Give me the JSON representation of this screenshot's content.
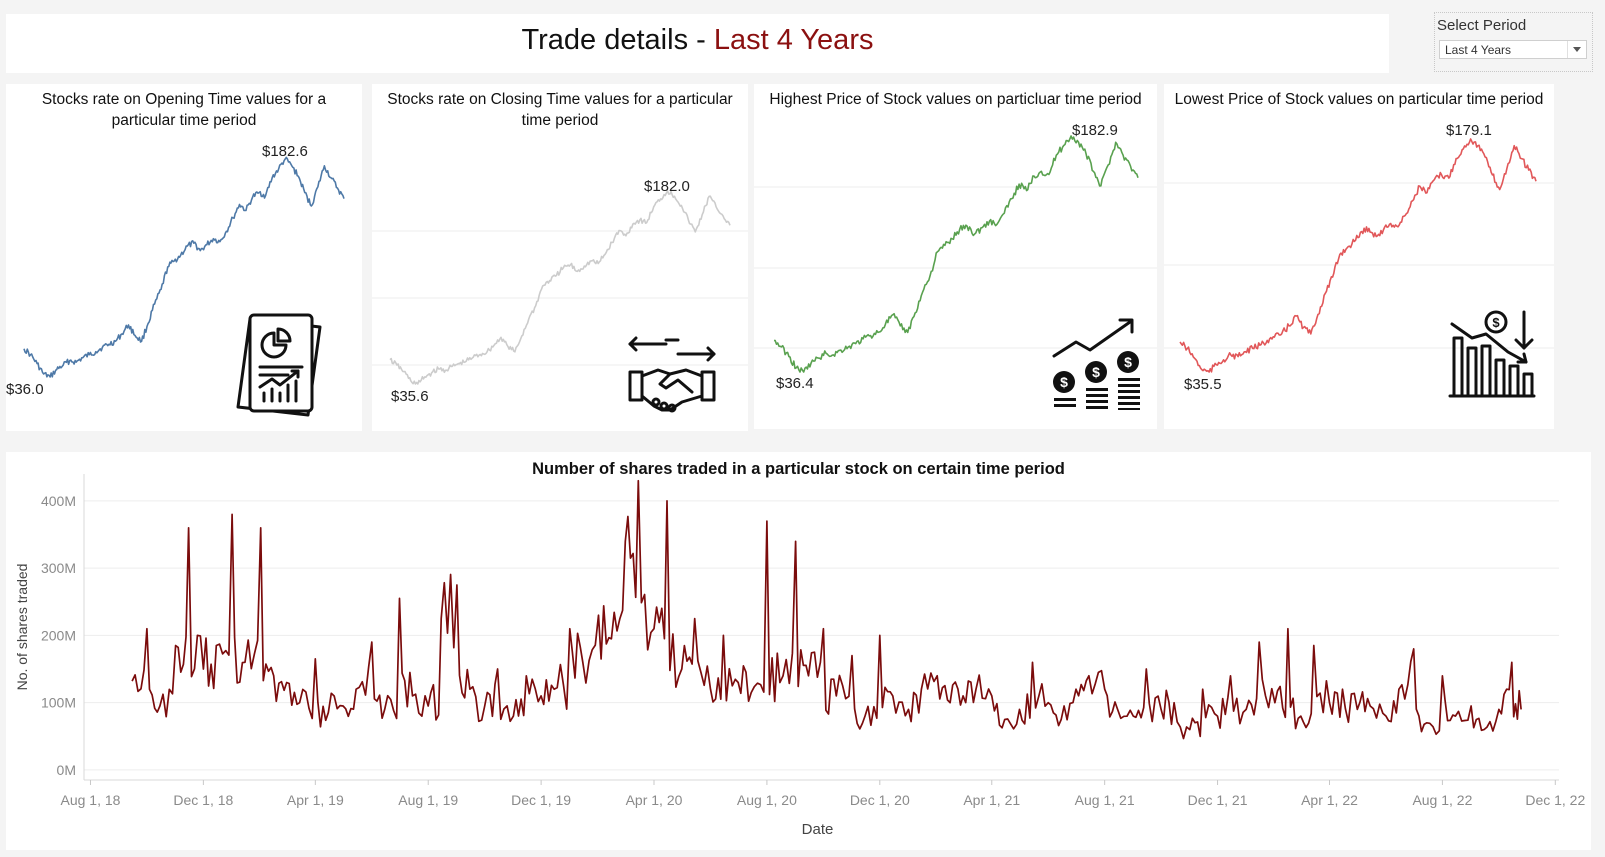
{
  "header": {
    "title_prefix": "Trade details - ",
    "title_accent": "Last 4 Years",
    "accent_color": "#8b1010"
  },
  "period_filter": {
    "label": "Select Period",
    "selected": "Last 4 Years"
  },
  "icons": [
    "report-icon",
    "handshake-icon",
    "growth-coins-icon",
    "decline-icon",
    "chevron-down-icon"
  ],
  "chart_data": [
    {
      "type": "line",
      "title": "Stocks rate on Opening Time values for a particular time period",
      "color": "#4e79a7",
      "x_range": [
        "2018-09-01",
        "2022-10-31"
      ],
      "min_label": "$36.0",
      "max_label": "$182.6",
      "ylim": [
        34,
        185
      ],
      "values": [
        55,
        51,
        45,
        38,
        36,
        41,
        44,
        47,
        46,
        49,
        51,
        53,
        56,
        58,
        60,
        65,
        71,
        64,
        60,
        72,
        85,
        95,
        110,
        114,
        118,
        124,
        126,
        121,
        125,
        129,
        127,
        134,
        143,
        152,
        148,
        157,
        160,
        158,
        170,
        176,
        182.6,
        178,
        171,
        160,
        151,
        164,
        178,
        170,
        163,
        156
      ]
    },
    {
      "type": "line",
      "title": "Stocks rate on Closing Time values for a particular time period",
      "color": "#cccccc",
      "x_range": [
        "2018-09-01",
        "2022-10-31"
      ],
      "min_label": "$35.6",
      "max_label": "$182.0",
      "ylim": [
        34,
        185
      ],
      "values": [
        54,
        50,
        45,
        38,
        35.6,
        41,
        44,
        47,
        46,
        49,
        51,
        53,
        56,
        58,
        60,
        65,
        71,
        64,
        60,
        72,
        85,
        95,
        110,
        114,
        118,
        124,
        126,
        121,
        125,
        129,
        127,
        134,
        143,
        152,
        148,
        157,
        160,
        158,
        170,
        176,
        182.0,
        178,
        171,
        160,
        151,
        164,
        178,
        170,
        163,
        156
      ]
    },
    {
      "type": "line",
      "title": "Highest Price of Stock values on particluar time period",
      "color": "#59a14f",
      "x_range": [
        "2018-09-01",
        "2022-10-31"
      ],
      "min_label": "$36.4",
      "max_label": "$182.9",
      "ylim": [
        34,
        185
      ],
      "values": [
        56,
        52,
        46,
        39,
        36.4,
        42,
        45,
        48,
        47,
        50,
        52,
        54,
        57,
        59,
        61,
        66,
        72,
        65,
        61,
        73,
        86,
        96,
        111,
        115,
        119,
        125,
        127,
        122,
        126,
        130,
        128,
        135,
        144,
        153,
        149,
        158,
        161,
        159,
        171,
        177,
        182.9,
        179,
        172,
        161,
        152,
        165,
        179,
        171,
        164,
        157
      ]
    },
    {
      "type": "line",
      "title": "Lowest Price of Stock values on particular time period",
      "color": "#e15759",
      "x_range": [
        "2018-09-01",
        "2022-10-31"
      ],
      "min_label": "$35.5",
      "max_label": "$179.1",
      "ylim": [
        34,
        185
      ],
      "values": [
        54,
        50,
        44,
        37,
        35.5,
        40,
        43,
        46,
        45,
        48,
        50,
        52,
        55,
        57,
        59,
        64,
        70,
        63,
        59,
        71,
        84,
        94,
        108,
        112,
        116,
        122,
        124,
        119,
        123,
        127,
        125,
        132,
        141,
        150,
        146,
        154,
        157,
        155,
        167,
        173,
        179.1,
        175,
        168,
        157,
        148,
        161,
        175,
        167,
        160,
        153
      ]
    },
    {
      "type": "line",
      "title": "Number of shares traded in a particular stock on certain time period",
      "color": "#7b0c0c",
      "xlabel": "Date",
      "ylabel": "No. of shares traded",
      "x_range": [
        "2018-07-25",
        "2022-12-05"
      ],
      "x_ticks": [
        "Aug 1, 18",
        "Dec 1, 18",
        "Apr 1, 19",
        "Aug 1, 19",
        "Dec 1, 19",
        "Apr 1, 20",
        "Aug 1, 20",
        "Dec 1, 20",
        "Apr 1, 21",
        "Aug 1, 21",
        "Dec 1, 21",
        "Apr 1, 22",
        "Aug 1, 22",
        "Dec 1, 22"
      ],
      "y_ticks": [
        "0M",
        "100M",
        "200M",
        "300M",
        "400M"
      ],
      "y_tick_values": [
        0,
        100,
        200,
        300,
        400
      ],
      "ylim": [
        -15,
        440
      ],
      "series_dates": [
        "2018-09-15",
        "2018-10-01",
        "2018-10-15",
        "2018-11-01",
        "2018-11-15",
        "2018-12-01",
        "2018-12-15",
        "2019-01-01",
        "2019-01-15",
        "2019-02-01",
        "2019-02-15",
        "2019-03-01",
        "2019-03-15",
        "2019-04-01",
        "2019-04-15",
        "2019-05-01",
        "2019-05-15",
        "2019-06-01",
        "2019-06-15",
        "2019-07-01",
        "2019-07-15",
        "2019-08-01",
        "2019-08-15",
        "2019-09-01",
        "2019-09-15",
        "2019-10-01",
        "2019-10-15",
        "2019-11-01",
        "2019-11-15",
        "2019-12-01",
        "2019-12-15",
        "2020-01-01",
        "2020-01-15",
        "2020-02-01",
        "2020-02-15",
        "2020-03-01",
        "2020-03-15",
        "2020-04-01",
        "2020-04-15",
        "2020-05-01",
        "2020-05-15",
        "2020-06-01",
        "2020-06-15",
        "2020-07-01",
        "2020-07-15",
        "2020-08-01",
        "2020-08-15",
        "2020-09-01",
        "2020-09-15",
        "2020-10-01",
        "2020-10-15",
        "2020-11-01",
        "2020-11-15",
        "2020-12-01",
        "2020-12-15",
        "2021-01-01",
        "2021-01-15",
        "2021-02-01",
        "2021-02-15",
        "2021-03-01",
        "2021-03-15",
        "2021-04-01",
        "2021-04-15",
        "2021-05-01",
        "2021-05-15",
        "2021-06-01",
        "2021-06-15",
        "2021-07-01",
        "2021-07-15",
        "2021-08-01",
        "2021-08-15",
        "2021-09-01",
        "2021-09-15",
        "2021-10-01",
        "2021-10-15",
        "2021-11-01",
        "2021-11-15",
        "2021-12-01",
        "2021-12-15",
        "2022-01-01",
        "2022-01-15",
        "2022-02-01",
        "2022-02-15",
        "2022-03-01",
        "2022-03-15",
        "2022-04-01",
        "2022-04-15",
        "2022-05-01",
        "2022-05-15",
        "2022-06-01",
        "2022-06-15",
        "2022-07-01",
        "2022-07-15",
        "2022-08-01",
        "2022-08-15",
        "2022-09-01",
        "2022-09-15",
        "2022-10-01",
        "2022-10-15",
        "2022-10-25"
      ],
      "values": [
        132,
        210,
        95,
        185,
        360,
        150,
        185,
        380,
        160,
        360,
        140,
        130,
        100,
        165,
        85,
        95,
        120,
        190,
        90,
        255,
        110,
        95,
        225,
        275,
        120,
        95,
        150,
        80,
        140,
        110,
        120,
        210,
        160,
        230,
        195,
        340,
        430,
        210,
        400,
        150,
        225,
        120,
        200,
        130,
        115,
        370,
        130,
        340,
        140,
        210,
        110,
        170,
        80,
        200,
        110,
        90,
        120,
        140,
        100,
        110,
        120,
        110,
        75,
        90,
        160,
        100,
        75,
        120,
        140,
        120,
        90,
        80,
        150,
        90,
        100,
        60,
        120,
        80,
        140,
        90,
        190,
        100,
        210,
        80,
        185,
        100,
        120,
        90,
        95,
        80,
        120,
        180,
        70,
        140,
        80,
        95,
        60,
        90,
        160,
        90
      ]
    }
  ]
}
